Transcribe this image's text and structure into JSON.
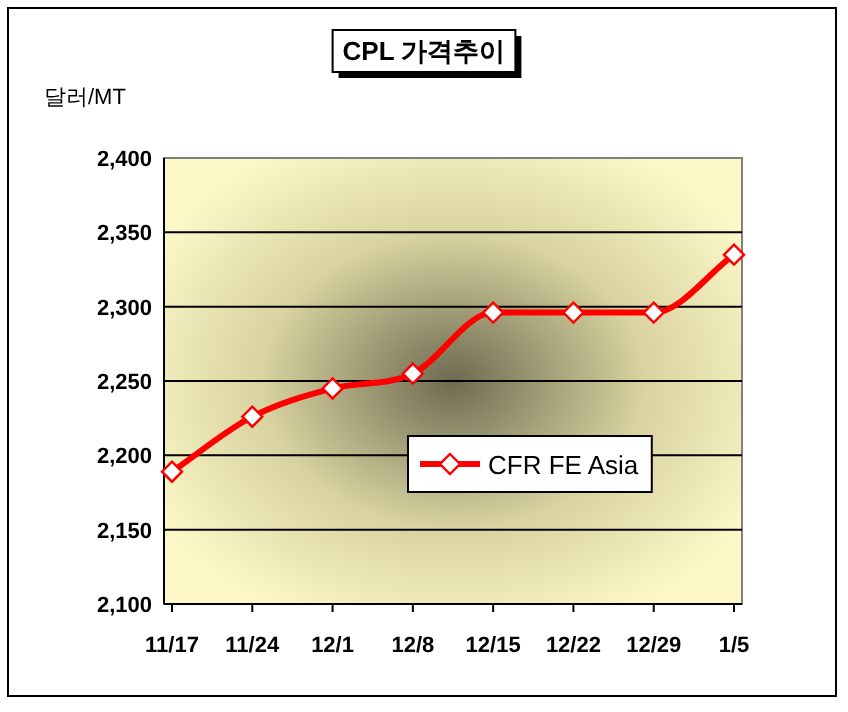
{
  "chart_data": {
    "type": "line",
    "title": "CPL 가격추이",
    "ylabel": "달러/MT",
    "categories": [
      "11/17",
      "11/24",
      "12/1",
      "12/8",
      "12/15",
      "12/22",
      "12/29",
      "1/5"
    ],
    "series": [
      {
        "name": "CFR FE Asia",
        "color": "#ff0000",
        "values": [
          2189,
          2226,
          2245,
          2255,
          2296,
          2296,
          2296,
          2335
        ]
      }
    ],
    "ylim": [
      2100,
      2400
    ],
    "yticks": [
      {
        "value": 2100,
        "label": "2,100"
      },
      {
        "value": 2150,
        "label": "2,150"
      },
      {
        "value": 2200,
        "label": "2,200"
      },
      {
        "value": 2250,
        "label": "2,250"
      },
      {
        "value": 2300,
        "label": "2,300"
      },
      {
        "value": 2350,
        "label": "2,350"
      },
      {
        "value": 2400,
        "label": "2,400"
      }
    ],
    "grid": "y",
    "legend": "center",
    "marker": "diamond",
    "line_style": "solid"
  }
}
